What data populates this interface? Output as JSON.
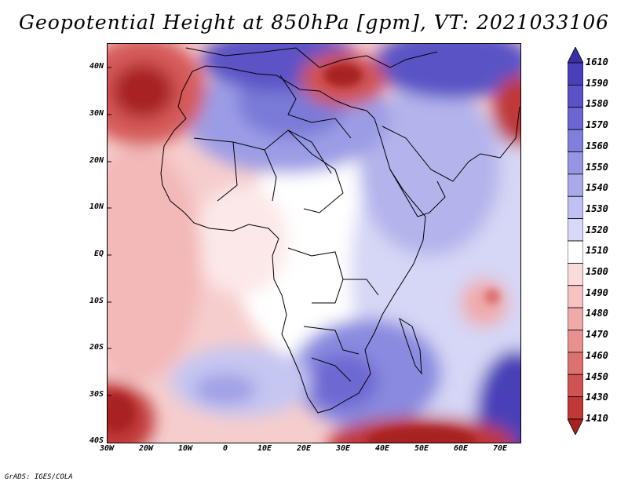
{
  "title": "Geopotential Height at 850hPa [gpm], VT: 2021033106",
  "credit": "GrADS: IGES/COLA",
  "lat_labels": [
    "40N",
    "30N",
    "20N",
    "10N",
    "EQ",
    "10S",
    "20S",
    "30S",
    "40S"
  ],
  "lon_labels": [
    "30W",
    "20W",
    "10W",
    "0",
    "10E",
    "20E",
    "30E",
    "40E",
    "50E",
    "60E",
    "70E"
  ],
  "colorbar": {
    "labels": [
      "1610",
      "1590",
      "1580",
      "1570",
      "1560",
      "1550",
      "1540",
      "1530",
      "1520",
      "1510",
      "1500",
      "1490",
      "1480",
      "1470",
      "1460",
      "1450",
      "1430",
      "1410"
    ],
    "colors": [
      "#3b2fa8",
      "#4a3fb8",
      "#5a52c6",
      "#6c66d2",
      "#8080dc",
      "#9595e4",
      "#aaaaeb",
      "#c0c0f2",
      "#d8d8f8",
      "#ffffff",
      "#fadada",
      "#f6c2c2",
      "#f0aaaa",
      "#e89090",
      "#dd7070",
      "#d05252",
      "#c03838",
      "#a82020"
    ]
  },
  "map": {
    "region": "Africa",
    "lon_range": [
      -30,
      75
    ],
    "lat_range": [
      -40,
      45
    ]
  }
}
